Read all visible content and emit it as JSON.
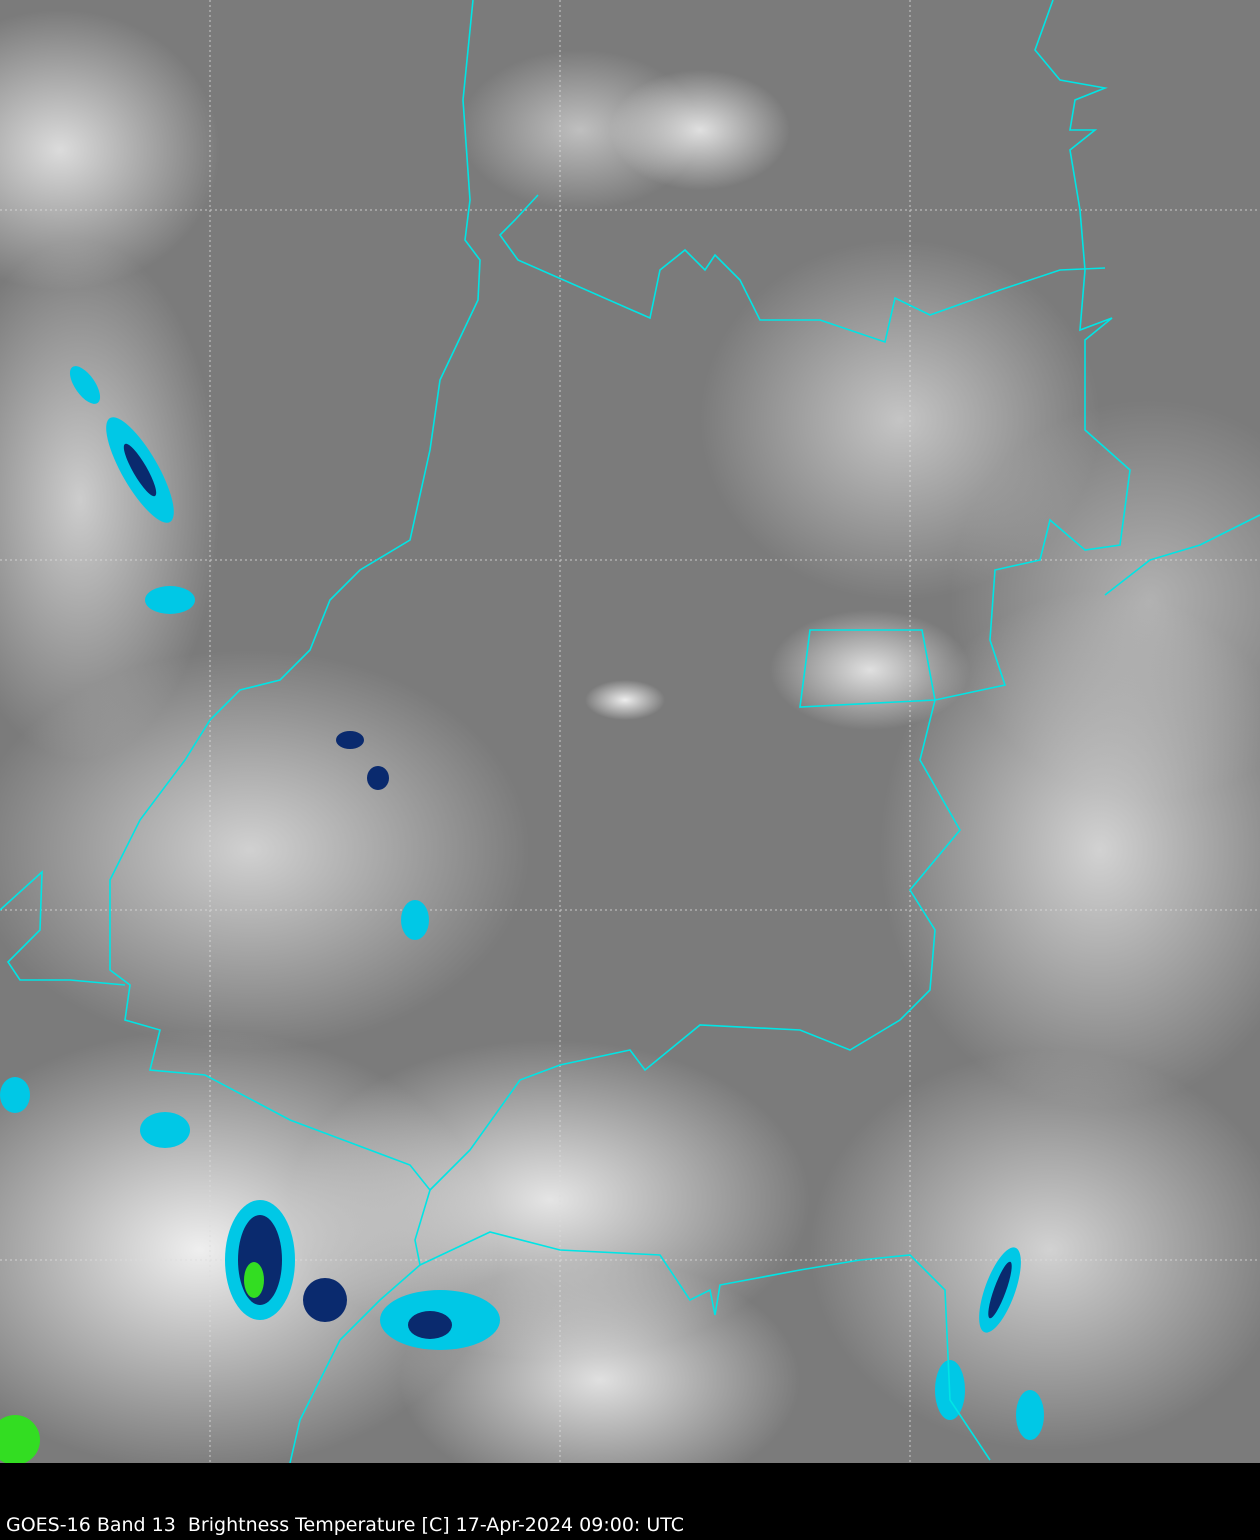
{
  "caption": "GOES-16 Band 13  Brightness Temperature [C] 17-Apr-2024 09:00: UTC",
  "colors": {
    "background": "#7b7b7b",
    "border": "#00e5e5",
    "grid": "#dddddd",
    "cold_cyan": "#00c8e6",
    "cold_navy": "#0a2a6e",
    "coldest_green": "#33dd22",
    "caption_bg": "#000000"
  }
}
